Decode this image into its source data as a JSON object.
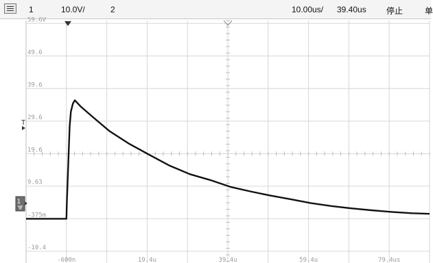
{
  "toolbar": {
    "menu_icon": "menu-icon",
    "channel1_number": "1",
    "channel1_scale": "10.0V/",
    "channel2_number": "2",
    "timebase": "10.00us/",
    "delay": "39.40us",
    "run_state": "停止",
    "clipped_char": "单"
  },
  "markers": {
    "channel1_label": "1",
    "trigger_level_label": "T",
    "ground_reference_icon": "ground-icon",
    "trigger_position_icon": "triangle-down-icon",
    "delay_position_icon": "chevron-down-icon"
  },
  "colors": {
    "grid": "#d6d6d6",
    "trace": "#111111",
    "background": "#ffffff"
  },
  "chart_data": {
    "type": "line",
    "title": "",
    "xlabel": "",
    "ylabel": "",
    "x_tick_labels": [
      "-600n",
      "19.4u",
      "39.4u",
      "59.4u",
      "79.4us"
    ],
    "x_ticks": [
      -0.6,
      19.4,
      39.4,
      59.4,
      79.4
    ],
    "y_tick_labels": [
      "59.6V",
      "49.6",
      "39.6",
      "29.6",
      "19.6",
      "9.63",
      "-375m",
      "-10.4"
    ],
    "y_ticks": [
      59.6,
      49.6,
      39.6,
      29.6,
      19.6,
      9.63,
      -0.375,
      -10.4
    ],
    "xlim": [
      -10.6,
      89.4
    ],
    "ylim": [
      -14,
      60.5
    ],
    "grid": true,
    "legend": "none",
    "series": [
      {
        "x": [
          -10.6,
          -0.6,
          -0.5,
          0.2,
          0.5,
          1.0,
          1.5,
          3,
          6,
          10,
          15,
          20,
          25,
          30,
          35,
          40,
          45,
          50,
          55,
          60,
          65,
          70,
          75,
          80,
          85,
          89.4
        ],
        "y": [
          -0.4,
          -0.4,
          4.5,
          28.0,
          32.5,
          35.0,
          36.0,
          34.0,
          30.8,
          26.6,
          22.6,
          19.2,
          15.9,
          13.3,
          11.5,
          9.4,
          8.0,
          6.7,
          5.6,
          4.4,
          3.5,
          2.8,
          2.2,
          1.7,
          1.3,
          1.1
        ]
      }
    ]
  }
}
